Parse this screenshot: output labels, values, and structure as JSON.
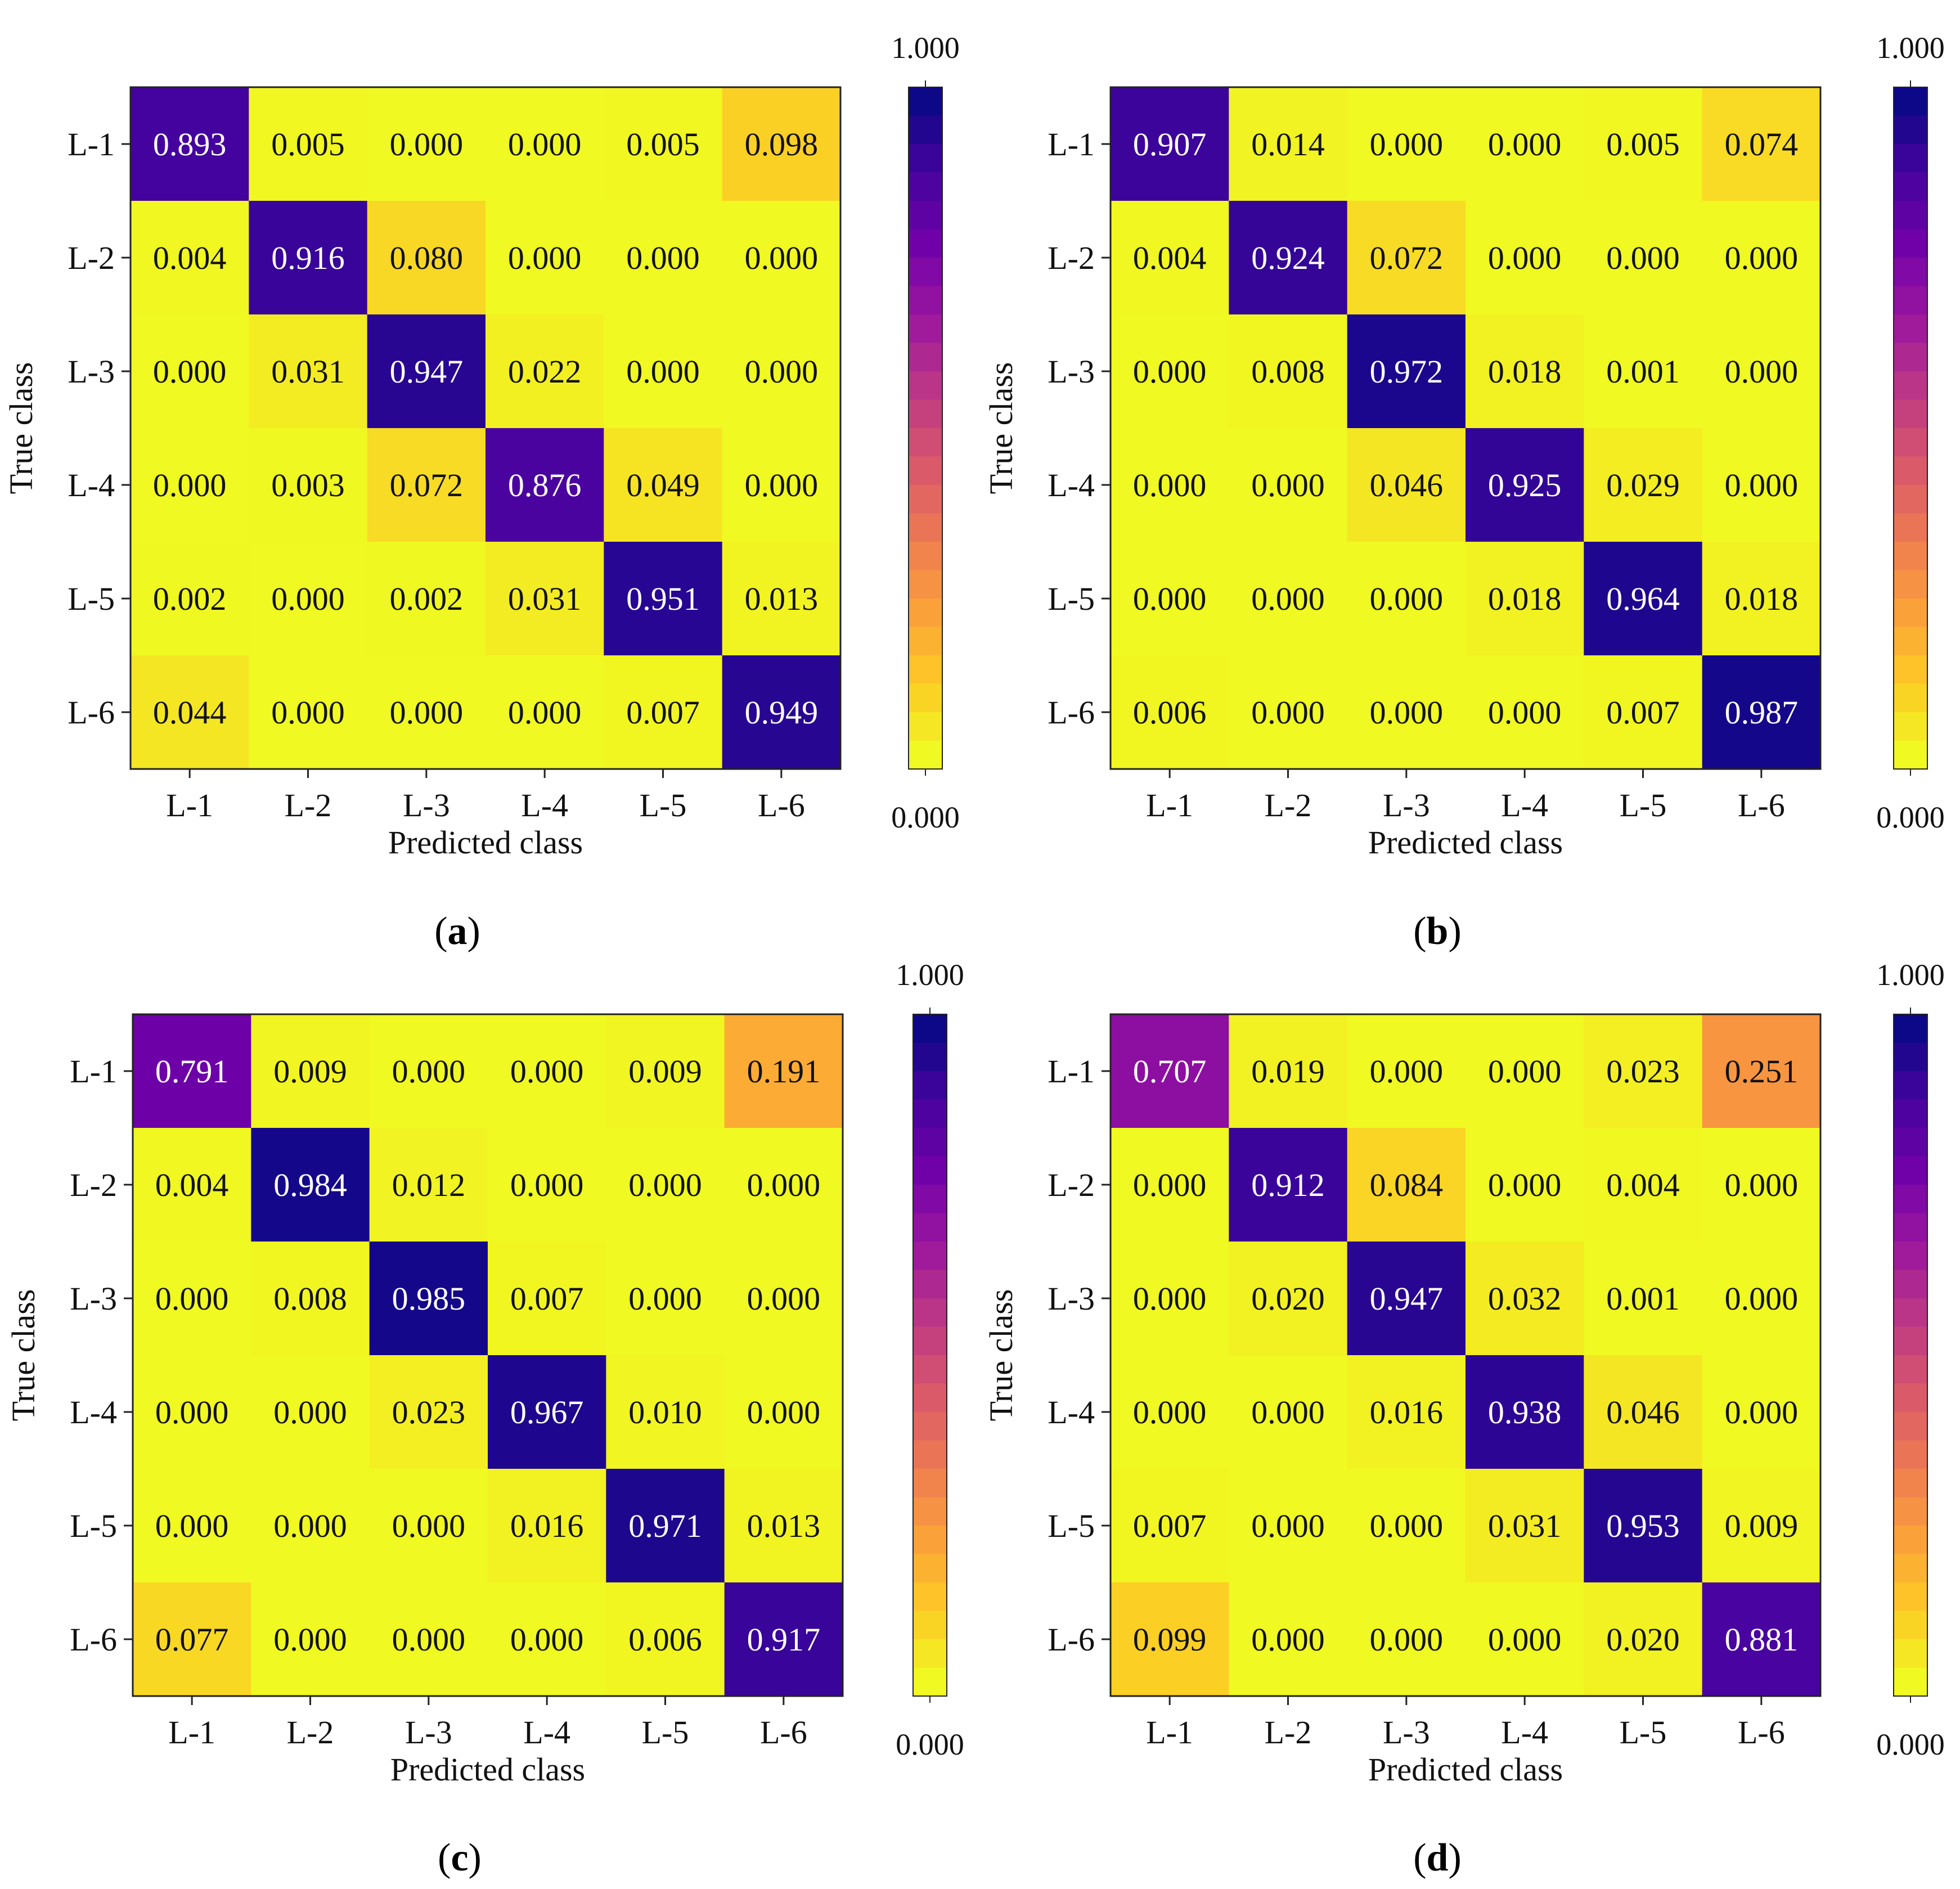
{
  "colors": {
    "colormap": [
      "#f0f921",
      "#fdca26",
      "#fb9f3a",
      "#ed7953",
      "#d8576b",
      "#bd3786",
      "#9c179e",
      "#7201a8",
      "#46039f",
      "#0d0887"
    ],
    "dark_text": "#111111",
    "light_text": "#ffffff",
    "text_threshold": 0.6
  },
  "chart_data": [
    {
      "type": "heatmap",
      "caption_letter": "a",
      "caption_open": "(",
      "caption_close": ")",
      "xlabel": "Predicted class",
      "ylabel": "True class",
      "x_categories": [
        "L-1",
        "L-2",
        "L-3",
        "L-4",
        "L-5",
        "L-6"
      ],
      "y_categories": [
        "L-1",
        "L-2",
        "L-3",
        "L-4",
        "L-5",
        "L-6"
      ],
      "values": [
        [
          0.893,
          0.005,
          0.0,
          0.0,
          0.005,
          0.098
        ],
        [
          0.004,
          0.916,
          0.08,
          0.0,
          0.0,
          0.0
        ],
        [
          0.0,
          0.031,
          0.947,
          0.022,
          0.0,
          0.0
        ],
        [
          0.0,
          0.003,
          0.072,
          0.876,
          0.049,
          0.0
        ],
        [
          0.002,
          0.0,
          0.002,
          0.031,
          0.951,
          0.013
        ],
        [
          0.044,
          0.0,
          0.0,
          0.0,
          0.007,
          0.949
        ]
      ],
      "labels": [
        [
          "0.893",
          "0.005",
          "0.000",
          "0.000",
          "0.005",
          "0.098"
        ],
        [
          "0.004",
          "0.916",
          "0.080",
          "0.000",
          "0.000",
          "0.000"
        ],
        [
          "0.000",
          "0.031",
          "0.947",
          "0.022",
          "0.000",
          "0.000"
        ],
        [
          "0.000",
          "0.003",
          "0.072",
          "0.876",
          "0.049",
          "0.000"
        ],
        [
          "0.002",
          "0.000",
          "0.002",
          "0.031",
          "0.951",
          "0.013"
        ],
        [
          "0.044",
          "0.000",
          "0.000",
          "0.000",
          "0.007",
          "0.949"
        ]
      ],
      "colorbar": {
        "min": 0.0,
        "max": 1.0,
        "min_label": "0.000",
        "max_label": "1.000"
      }
    },
    {
      "type": "heatmap",
      "caption_letter": "b",
      "caption_open": "(",
      "caption_close": ")",
      "xlabel": "Predicted class",
      "ylabel": "True class",
      "x_categories": [
        "L-1",
        "L-2",
        "L-3",
        "L-4",
        "L-5",
        "L-6"
      ],
      "y_categories": [
        "L-1",
        "L-2",
        "L-3",
        "L-4",
        "L-5",
        "L-6"
      ],
      "values": [
        [
          0.907,
          0.014,
          0.0,
          0.0,
          0.005,
          0.074
        ],
        [
          0.004,
          0.924,
          0.072,
          0.0,
          0.0,
          0.0
        ],
        [
          0.0,
          0.008,
          0.972,
          0.018,
          0.001,
          0.0
        ],
        [
          0.0,
          0.0,
          0.046,
          0.925,
          0.029,
          0.0
        ],
        [
          0.0,
          0.0,
          0.0,
          0.018,
          0.964,
          0.018
        ],
        [
          0.006,
          0.0,
          0.0,
          0.0,
          0.007,
          0.987
        ]
      ],
      "labels": [
        [
          "0.907",
          "0.014",
          "0.000",
          "0.000",
          "0.005",
          "0.074"
        ],
        [
          "0.004",
          "0.924",
          "0.072",
          "0.000",
          "0.000",
          "0.000"
        ],
        [
          "0.000",
          "0.008",
          "0.972",
          "0.018",
          "0.001",
          "0.000"
        ],
        [
          "0.000",
          "0.000",
          "0.046",
          "0.925",
          "0.029",
          "0.000"
        ],
        [
          "0.000",
          "0.000",
          "0.000",
          "0.018",
          "0.964",
          "0.018"
        ],
        [
          "0.006",
          "0.000",
          "0.000",
          "0.000",
          "0.007",
          "0.987"
        ]
      ],
      "colorbar": {
        "min": 0.0,
        "max": 1.0,
        "min_label": "0.000",
        "max_label": "1.000"
      }
    },
    {
      "type": "heatmap",
      "caption_letter": "c",
      "caption_open": "(",
      "caption_close": ")",
      "xlabel": "Predicted class",
      "ylabel": "True class",
      "x_categories": [
        "L-1",
        "L-2",
        "L-3",
        "L-4",
        "L-5",
        "L-6"
      ],
      "y_categories": [
        "L-1",
        "L-2",
        "L-3",
        "L-4",
        "L-5",
        "L-6"
      ],
      "values": [
        [
          0.791,
          0.009,
          0.0,
          0.0,
          0.009,
          0.191
        ],
        [
          0.004,
          0.984,
          0.012,
          0.0,
          0.0,
          0.0
        ],
        [
          0.0,
          0.008,
          0.985,
          0.007,
          0.0,
          0.0
        ],
        [
          0.0,
          0.0,
          0.023,
          0.967,
          0.01,
          0.0
        ],
        [
          0.0,
          0.0,
          0.0,
          0.016,
          0.971,
          0.013
        ],
        [
          0.077,
          0.0,
          0.0,
          0.0,
          0.006,
          0.917
        ]
      ],
      "labels": [
        [
          "0.791",
          "0.009",
          "0.000",
          "0.000",
          "0.009",
          "0.191"
        ],
        [
          "0.004",
          "0.984",
          "0.012",
          "0.000",
          "0.000",
          "0.000"
        ],
        [
          "0.000",
          "0.008",
          "0.985",
          "0.007",
          "0.000",
          "0.000"
        ],
        [
          "0.000",
          "0.000",
          "0.023",
          "0.967",
          "0.010",
          "0.000"
        ],
        [
          "0.000",
          "0.000",
          "0.000",
          "0.016",
          "0.971",
          "0.013"
        ],
        [
          "0.077",
          "0.000",
          "0.000",
          "0.000",
          "0.006",
          "0.917"
        ]
      ],
      "colorbar": {
        "min": 0.0,
        "max": 1.0,
        "min_label": "0.000",
        "max_label": "1.000"
      }
    },
    {
      "type": "heatmap",
      "caption_letter": "d",
      "caption_open": "(",
      "caption_close": ")",
      "xlabel": "Predicted class",
      "ylabel": "True class",
      "x_categories": [
        "L-1",
        "L-2",
        "L-3",
        "L-4",
        "L-5",
        "L-6"
      ],
      "y_categories": [
        "L-1",
        "L-2",
        "L-3",
        "L-4",
        "L-5",
        "L-6"
      ],
      "values": [
        [
          0.707,
          0.019,
          0.0,
          0.0,
          0.023,
          0.251
        ],
        [
          0.0,
          0.912,
          0.084,
          0.0,
          0.004,
          0.0
        ],
        [
          0.0,
          0.02,
          0.947,
          0.032,
          0.001,
          0.0
        ],
        [
          0.0,
          0.0,
          0.016,
          0.938,
          0.046,
          0.0
        ],
        [
          0.007,
          0.0,
          0.0,
          0.031,
          0.953,
          0.009
        ],
        [
          0.099,
          0.0,
          0.0,
          0.0,
          0.02,
          0.881
        ]
      ],
      "labels": [
        [
          "0.707",
          "0.019",
          "0.000",
          "0.000",
          "0.023",
          "0.251"
        ],
        [
          "0.000",
          "0.912",
          "0.084",
          "0.000",
          "0.004",
          "0.000"
        ],
        [
          "0.000",
          "0.020",
          "0.947",
          "0.032",
          "0.001",
          "0.000"
        ],
        [
          "0.000",
          "0.000",
          "0.016",
          "0.938",
          "0.046",
          "0.000"
        ],
        [
          "0.007",
          "0.000",
          "0.000",
          "0.031",
          "0.953",
          "0.009"
        ],
        [
          "0.099",
          "0.000",
          "0.000",
          "0.000",
          "0.020",
          "0.881"
        ]
      ],
      "colorbar": {
        "min": 0.0,
        "max": 1.0,
        "min_label": "0.000",
        "max_label": "1.000"
      }
    }
  ]
}
